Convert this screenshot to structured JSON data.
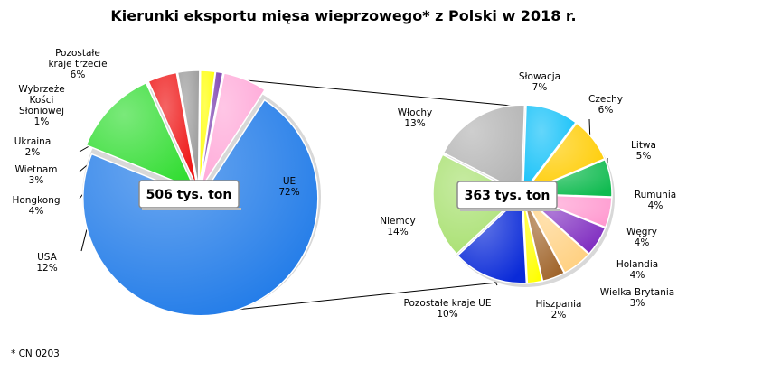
{
  "title": "Kierunki eksportu mięsa wieprzowego* z Polski  w 2018 r.",
  "footnote": "* CN 0203",
  "chart_data": [
    {
      "type": "pie",
      "total_label": "506 tys. ton",
      "unit": "%",
      "slices": [
        {
          "name": "UE",
          "value": 72,
          "color": "#1f7ae8"
        },
        {
          "name": "USA",
          "value": 12,
          "color": "#33dd33"
        },
        {
          "name": "Hongkong",
          "value": 4,
          "color": "#ee1111"
        },
        {
          "name": "Wietnam",
          "value": 3,
          "color": "#9a9a9a"
        },
        {
          "name": "Ukraina",
          "value": 2,
          "color": "#ffff00"
        },
        {
          "name": "Wybrzeże Kości Słoniowej",
          "value": 1,
          "color": "#7b3fb0"
        },
        {
          "name": "Pozostałe kraje trzecie",
          "value": 6,
          "color": "#ffa8d8"
        }
      ]
    },
    {
      "type": "pie",
      "total_label": "363 tys. ton",
      "unit": "%",
      "slices": [
        {
          "name": "Słowacja",
          "value": 7,
          "color": "#10c0f8"
        },
        {
          "name": "Czechy",
          "value": 6,
          "color": "#ffcc00"
        },
        {
          "name": "Litwa",
          "value": 5,
          "color": "#10bb50"
        },
        {
          "name": "Rumunia",
          "value": 4,
          "color": "#ff9ad0"
        },
        {
          "name": "Węgry",
          "value": 4,
          "color": "#7f2cc0"
        },
        {
          "name": "Holandia",
          "value": 4,
          "color": "#ffd080"
        },
        {
          "name": "Wielka  Brytania",
          "value": 3,
          "color": "#a0642a"
        },
        {
          "name": "Hiszpania",
          "value": 2,
          "color": "#ffff00"
        },
        {
          "name": "Pozostałe kraje  UE",
          "value": 10,
          "color": "#0a2ad8"
        },
        {
          "name": "Niemcy",
          "value": 14,
          "color": "#a8e070"
        },
        {
          "name": "Włochy",
          "value": 13,
          "color": "#b4b4b4"
        }
      ]
    }
  ]
}
